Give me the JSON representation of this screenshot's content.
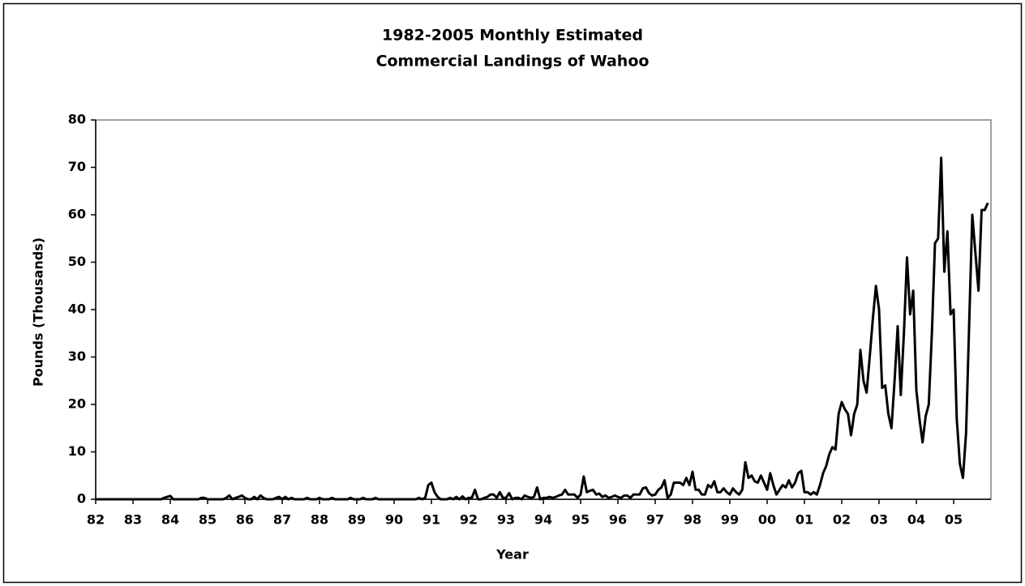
{
  "chart_data": {
    "type": "line",
    "title": [
      "1982-2005 Monthly Estimated",
      "Commercial Landings of Wahoo"
    ],
    "x_label": "Year",
    "y_label": "Pounds (Thousands)",
    "ylim": [
      0,
      80
    ],
    "yticks": [
      0,
      10,
      20,
      30,
      40,
      50,
      60,
      70,
      80
    ],
    "grid": false,
    "categories": [
      "82",
      null,
      null,
      null,
      null,
      null,
      null,
      null,
      null,
      null,
      null,
      null,
      "83",
      null,
      null,
      null,
      null,
      null,
      null,
      null,
      null,
      null,
      null,
      null,
      "84",
      null,
      null,
      null,
      null,
      null,
      null,
      null,
      null,
      null,
      null,
      null,
      "85",
      null,
      null,
      null,
      null,
      null,
      null,
      null,
      null,
      null,
      null,
      null,
      "86",
      null,
      null,
      null,
      null,
      null,
      null,
      null,
      null,
      null,
      null,
      null,
      "87",
      null,
      null,
      null,
      null,
      null,
      null,
      null,
      null,
      null,
      null,
      null,
      "88",
      null,
      null,
      null,
      null,
      null,
      null,
      null,
      null,
      null,
      null,
      null,
      "89",
      null,
      null,
      null,
      null,
      null,
      null,
      null,
      null,
      null,
      null,
      null,
      "90",
      null,
      null,
      null,
      null,
      null,
      null,
      null,
      null,
      null,
      null,
      null,
      "91",
      null,
      null,
      null,
      null,
      null,
      null,
      null,
      null,
      null,
      null,
      null,
      "92",
      null,
      null,
      null,
      null,
      null,
      null,
      null,
      null,
      null,
      null,
      null,
      "93",
      null,
      null,
      null,
      null,
      null,
      null,
      null,
      null,
      null,
      null,
      null,
      "94",
      null,
      null,
      null,
      null,
      null,
      null,
      null,
      null,
      null,
      null,
      null,
      "95",
      null,
      null,
      null,
      null,
      null,
      null,
      null,
      null,
      null,
      null,
      null,
      "96",
      null,
      null,
      null,
      null,
      null,
      null,
      null,
      null,
      null,
      null,
      null,
      "97",
      null,
      null,
      null,
      null,
      null,
      null,
      null,
      null,
      null,
      null,
      null,
      "98",
      null,
      null,
      null,
      null,
      null,
      null,
      null,
      null,
      null,
      null,
      null,
      "99",
      null,
      null,
      null,
      null,
      null,
      null,
      null,
      null,
      null,
      null,
      null,
      "00",
      null,
      null,
      null,
      null,
      null,
      null,
      null,
      null,
      null,
      null,
      null,
      "01",
      null,
      null,
      null,
      null,
      null,
      null,
      null,
      null,
      null,
      null,
      null,
      "02",
      null,
      null,
      null,
      null,
      null,
      null,
      null,
      null,
      null,
      null,
      null,
      "03",
      null,
      null,
      null,
      null,
      null,
      null,
      null,
      null,
      null,
      null,
      null,
      "04",
      null,
      null,
      null,
      null,
      null,
      null,
      null,
      null,
      null,
      null,
      null,
      "05",
      null,
      null,
      null,
      null,
      null,
      null,
      null,
      null,
      null,
      null,
      null
    ],
    "series": [
      {
        "color": "#000000",
        "values": [
          0,
          0,
          0,
          0,
          0,
          0,
          0,
          0,
          0,
          0,
          0,
          0,
          0,
          0,
          0,
          0,
          0,
          0,
          0,
          0,
          0,
          0,
          0.3,
          0.5,
          0.7,
          0,
          0,
          0,
          0,
          0,
          0,
          0,
          0,
          0,
          0.3,
          0.3,
          0,
          0,
          0,
          0,
          0,
          0,
          0.3,
          0.8,
          0,
          0.3,
          0.5,
          0.8,
          0.3,
          0,
          0,
          0.5,
          0,
          0.8,
          0.3,
          0,
          0,
          0,
          0.3,
          0.5,
          0,
          0.5,
          0,
          0.3,
          0,
          0,
          0,
          0,
          0.3,
          0,
          0,
          0,
          0.3,
          0,
          0,
          0,
          0.3,
          0,
          0,
          0,
          0,
          0,
          0.3,
          0,
          0,
          0,
          0.3,
          0,
          0,
          0,
          0.3,
          0,
          0,
          0,
          0,
          0,
          0,
          0,
          0,
          0,
          0,
          0,
          0,
          0,
          0.3,
          0,
          0.3,
          3,
          3.5,
          1.5,
          0.5,
          0,
          0,
          0,
          0.3,
          0,
          0.5,
          0,
          0.6,
          0,
          0.3,
          0.3,
          2,
          0,
          0,
          0.3,
          0.5,
          1,
          1,
          0.3,
          1.5,
          0.3,
          0.3,
          1.3,
          0,
          0.3,
          0.3,
          0,
          0.8,
          0.5,
          0.3,
          0.5,
          2.5,
          0,
          0.3,
          0.3,
          0.5,
          0.3,
          0.5,
          0.8,
          1,
          2,
          1,
          1,
          1,
          0.3,
          1,
          4.8,
          1.5,
          1.8,
          2,
          1,
          1.2,
          0.5,
          0.8,
          0.3,
          0.5,
          0.8,
          0.5,
          0.3,
          0.8,
          0.8,
          0.3,
          1,
          1,
          1,
          2.3,
          2.5,
          1.3,
          0.8,
          1,
          2,
          2.5,
          4,
          0.3,
          1,
          3.5,
          3.5,
          3.5,
          3,
          4.5,
          3,
          5.8,
          2,
          2,
          1,
          1,
          3,
          2.5,
          3.8,
          1.5,
          1.5,
          2.3,
          1.5,
          1,
          2.3,
          1.5,
          1,
          2,
          7.8,
          4.5,
          5,
          3.8,
          3.5,
          5,
          3.5,
          2,
          5.5,
          3,
          1,
          2,
          3,
          2.5,
          4,
          2.5,
          3.5,
          5.5,
          6,
          1.5,
          1.5,
          1,
          1.5,
          1,
          3,
          5.5,
          7,
          9.5,
          11,
          10.5,
          18,
          20.5,
          19,
          18,
          13.5,
          18,
          20,
          31.5,
          25,
          22.5,
          30,
          38,
          45,
          40,
          23.5,
          24,
          18,
          15,
          25,
          36.5,
          22,
          35,
          51,
          39,
          44,
          23,
          17,
          12,
          17.5,
          20,
          35,
          54,
          55,
          72,
          48,
          56.5,
          39,
          40,
          17,
          7.5,
          4.5,
          14,
          37,
          60,
          52,
          44,
          61,
          61,
          62.5
        ]
      }
    ]
  }
}
